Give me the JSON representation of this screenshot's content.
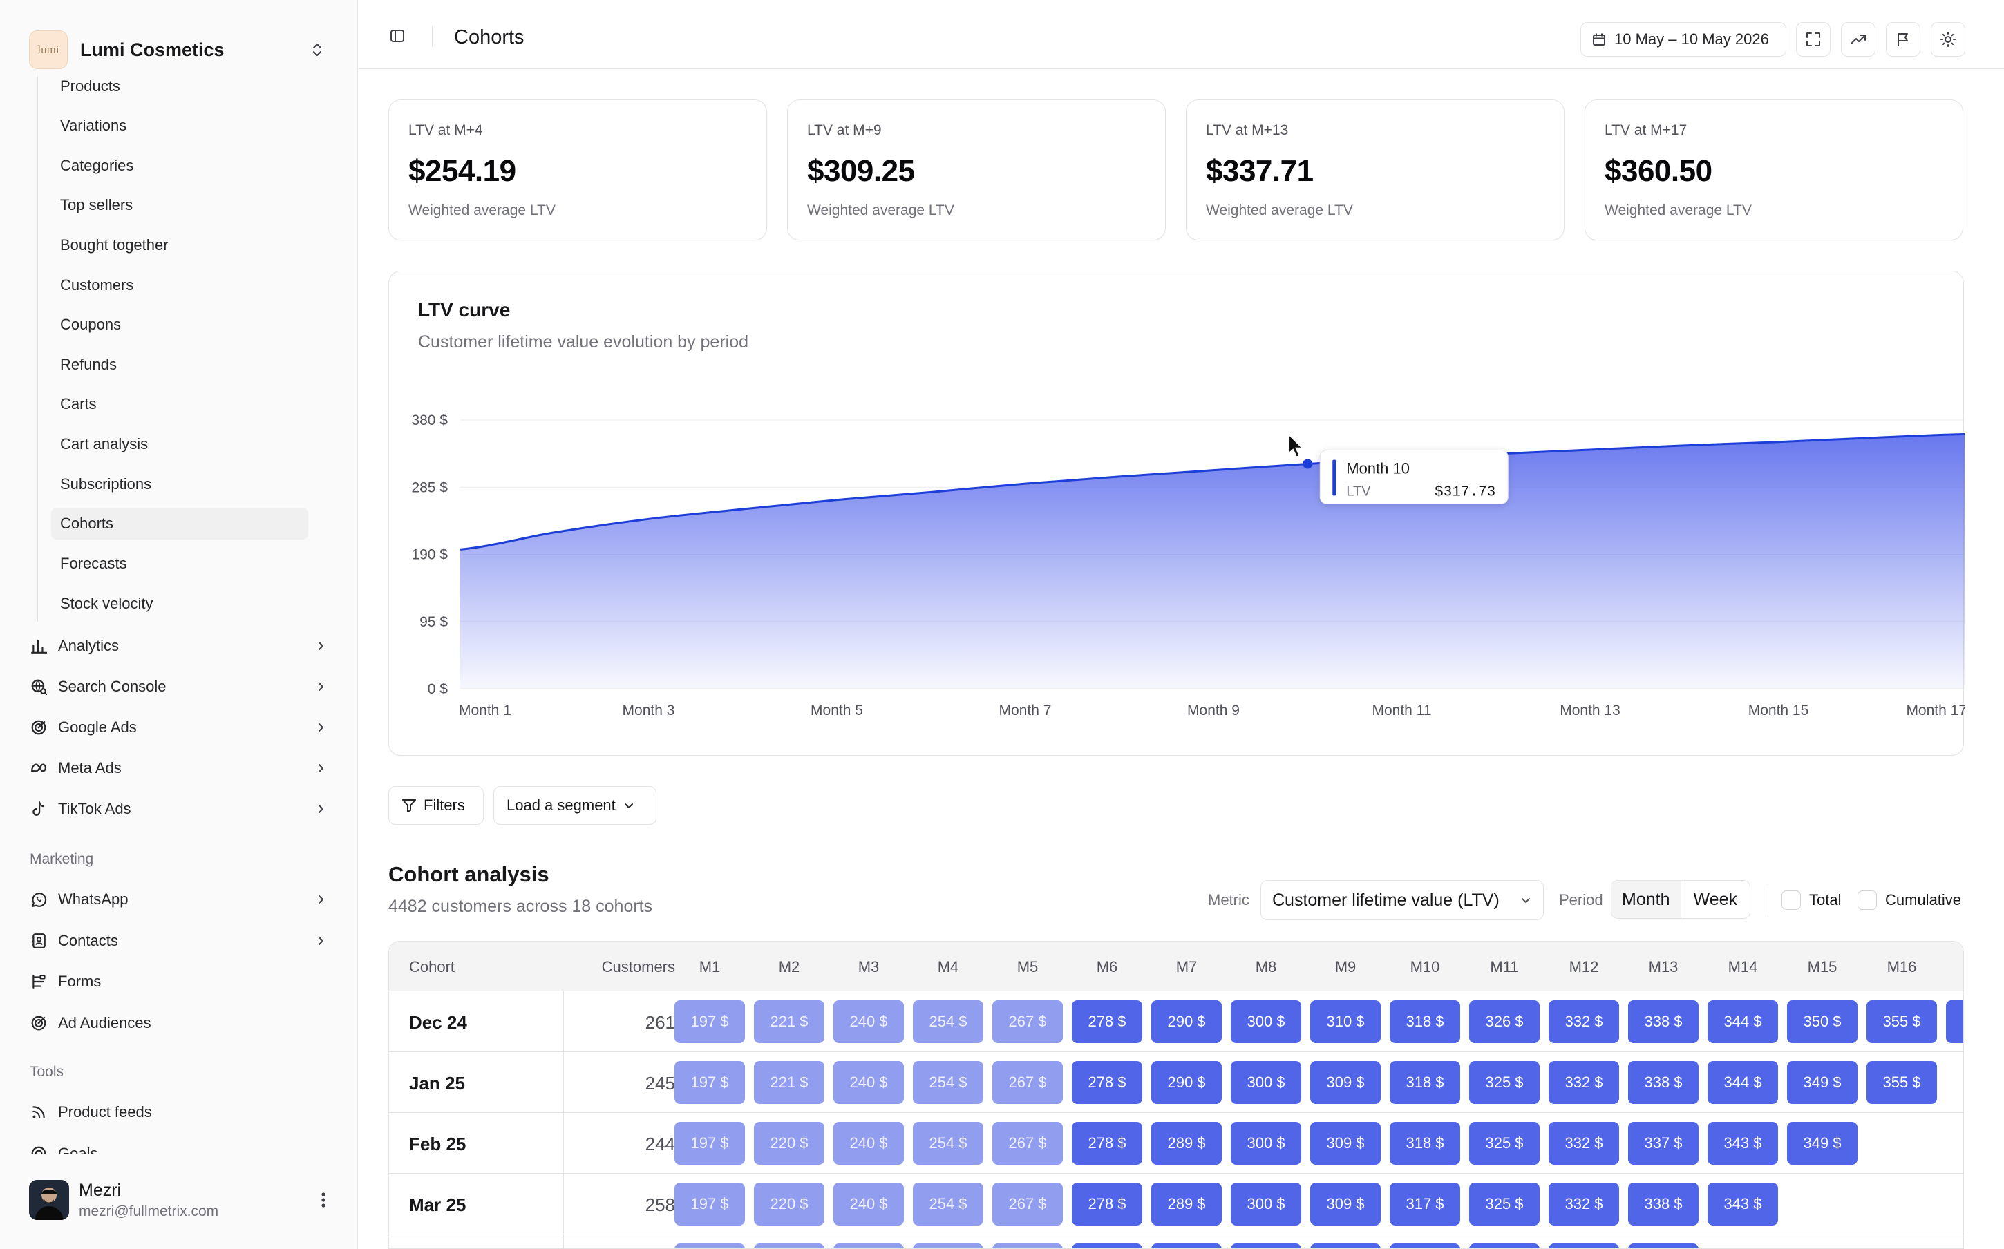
{
  "sidebar": {
    "brand": {
      "logo_text": "lumi",
      "name": "Lumi Cosmetics"
    },
    "sub_items": [
      {
        "label": "Products"
      },
      {
        "label": "Variations"
      },
      {
        "label": "Categories"
      },
      {
        "label": "Top sellers"
      },
      {
        "label": "Bought together"
      },
      {
        "label": "Customers"
      },
      {
        "label": "Coupons"
      },
      {
        "label": "Refunds"
      },
      {
        "label": "Carts"
      },
      {
        "label": "Cart analysis"
      },
      {
        "label": "Subscriptions"
      },
      {
        "label": "Cohorts",
        "active": true
      },
      {
        "label": "Forecasts"
      },
      {
        "label": "Stock velocity"
      }
    ],
    "groups": [
      {
        "label": "Analytics",
        "icon": "bar-chart-icon"
      },
      {
        "label": "Search Console",
        "icon": "globe-search-icon"
      },
      {
        "label": "Google Ads",
        "icon": "target-icon"
      },
      {
        "label": "Meta Ads",
        "icon": "meta-icon"
      },
      {
        "label": "TikTok Ads",
        "icon": "tiktok-icon"
      }
    ],
    "marketing_label": "Marketing",
    "marketing": [
      {
        "label": "WhatsApp",
        "icon": "whatsapp-icon",
        "chevron": true
      },
      {
        "label": "Contacts",
        "icon": "contacts-icon",
        "chevron": true
      },
      {
        "label": "Forms",
        "icon": "form-icon",
        "chevron": false
      },
      {
        "label": "Ad Audiences",
        "icon": "target-icon",
        "chevron": false
      }
    ],
    "tools_label": "Tools",
    "tools": [
      {
        "label": "Product feeds",
        "icon": "rss-icon"
      },
      {
        "label": "Goals",
        "icon": "goal-icon"
      }
    ],
    "user": {
      "name": "Mezri",
      "email": "mezri@fullmetrix.com"
    }
  },
  "topbar": {
    "title": "Cohorts",
    "date_range": "10 May – 10 May 2026"
  },
  "kpis": [
    {
      "label": "LTV at M+4",
      "value": "$254.19",
      "sub": "Weighted average LTV"
    },
    {
      "label": "LTV at M+9",
      "value": "$309.25",
      "sub": "Weighted average LTV"
    },
    {
      "label": "LTV at M+13",
      "value": "$337.71",
      "sub": "Weighted average LTV"
    },
    {
      "label": "LTV at M+17",
      "value": "$360.50",
      "sub": "Weighted average LTV"
    }
  ],
  "ltv_chart": {
    "title": "LTV curve",
    "subtitle": "Customer lifetime value evolution by period",
    "tooltip": {
      "title": "Month 10",
      "label": "LTV",
      "value": "$317.73"
    }
  },
  "chart_data": {
    "type": "area",
    "x": [
      "Month 1",
      "Month 2",
      "Month 3",
      "Month 4",
      "Month 5",
      "Month 6",
      "Month 7",
      "Month 8",
      "Month 9",
      "Month 10",
      "Month 11",
      "Month 12",
      "Month 13",
      "Month 14",
      "Month 15",
      "Month 16",
      "Month 17"
    ],
    "series": [
      {
        "values": [
          197,
          221,
          240,
          254,
          267,
          278,
          290,
          300,
          309,
          318,
          325,
          332,
          338,
          344,
          349,
          355,
          360
        ]
      }
    ],
    "ylim": [
      0,
      380
    ],
    "yticks": [
      0,
      95,
      190,
      285,
      380
    ],
    "ytick_labels": [
      "0 $",
      "95 $",
      "190 $",
      "285 $",
      "380 $"
    ],
    "xtick_labels": [
      "Month 1",
      "Month 3",
      "Month 5",
      "Month 7",
      "Month 9",
      "Month 11",
      "Month 13",
      "Month 15",
      "Month 17"
    ],
    "color": "#1d3fd8",
    "fill_top": "#6878ee",
    "grid": true,
    "highlight_index": 9
  },
  "filters_label": "Filters",
  "segment_label": "Load a segment",
  "cohort": {
    "title": "Cohort analysis",
    "subtitle": "4482 customers across 18 cohorts",
    "metric_label": "Metric",
    "metric_value": "Customer lifetime value (LTV)",
    "period_label": "Period",
    "period_options": [
      "Month",
      "Week"
    ],
    "total_label": "Total",
    "cumulative_label": "Cumulative",
    "headers": [
      "Cohort",
      "Customers",
      "M1",
      "M2",
      "M3",
      "M4",
      "M5",
      "M6",
      "M7",
      "M8",
      "M9",
      "M10",
      "M11",
      "M12",
      "M13",
      "M14",
      "M15",
      "M16"
    ],
    "rows": [
      {
        "cohort": "Dec 24",
        "customers": "261",
        "values": [
          "197 $",
          "221 $",
          "240 $",
          "254 $",
          "267 $",
          "278 $",
          "290 $",
          "300 $",
          "310 $",
          "318 $",
          "326 $",
          "332 $",
          "338 $",
          "344 $",
          "350 $",
          "355 $"
        ],
        "partial_extra": true
      },
      {
        "cohort": "Jan 25",
        "customers": "245",
        "values": [
          "197 $",
          "221 $",
          "240 $",
          "254 $",
          "267 $",
          "278 $",
          "290 $",
          "300 $",
          "309 $",
          "318 $",
          "325 $",
          "332 $",
          "338 $",
          "344 $",
          "349 $",
          "355 $"
        ]
      },
      {
        "cohort": "Feb 25",
        "customers": "244",
        "values": [
          "197 $",
          "220 $",
          "240 $",
          "254 $",
          "267 $",
          "278 $",
          "289 $",
          "300 $",
          "309 $",
          "318 $",
          "325 $",
          "332 $",
          "337 $",
          "343 $",
          "349 $"
        ]
      },
      {
        "cohort": "Mar 25",
        "customers": "258",
        "values": [
          "197 $",
          "220 $",
          "240 $",
          "254 $",
          "267 $",
          "278 $",
          "289 $",
          "300 $",
          "309 $",
          "317 $",
          "325 $",
          "332 $",
          "338 $",
          "343 $"
        ]
      },
      {
        "cohort": "",
        "customers": "",
        "values": [
          "",
          "",
          "",
          "",
          "",
          "",
          "",
          "",
          "",
          "",
          "",
          "",
          ""
        ]
      }
    ]
  }
}
